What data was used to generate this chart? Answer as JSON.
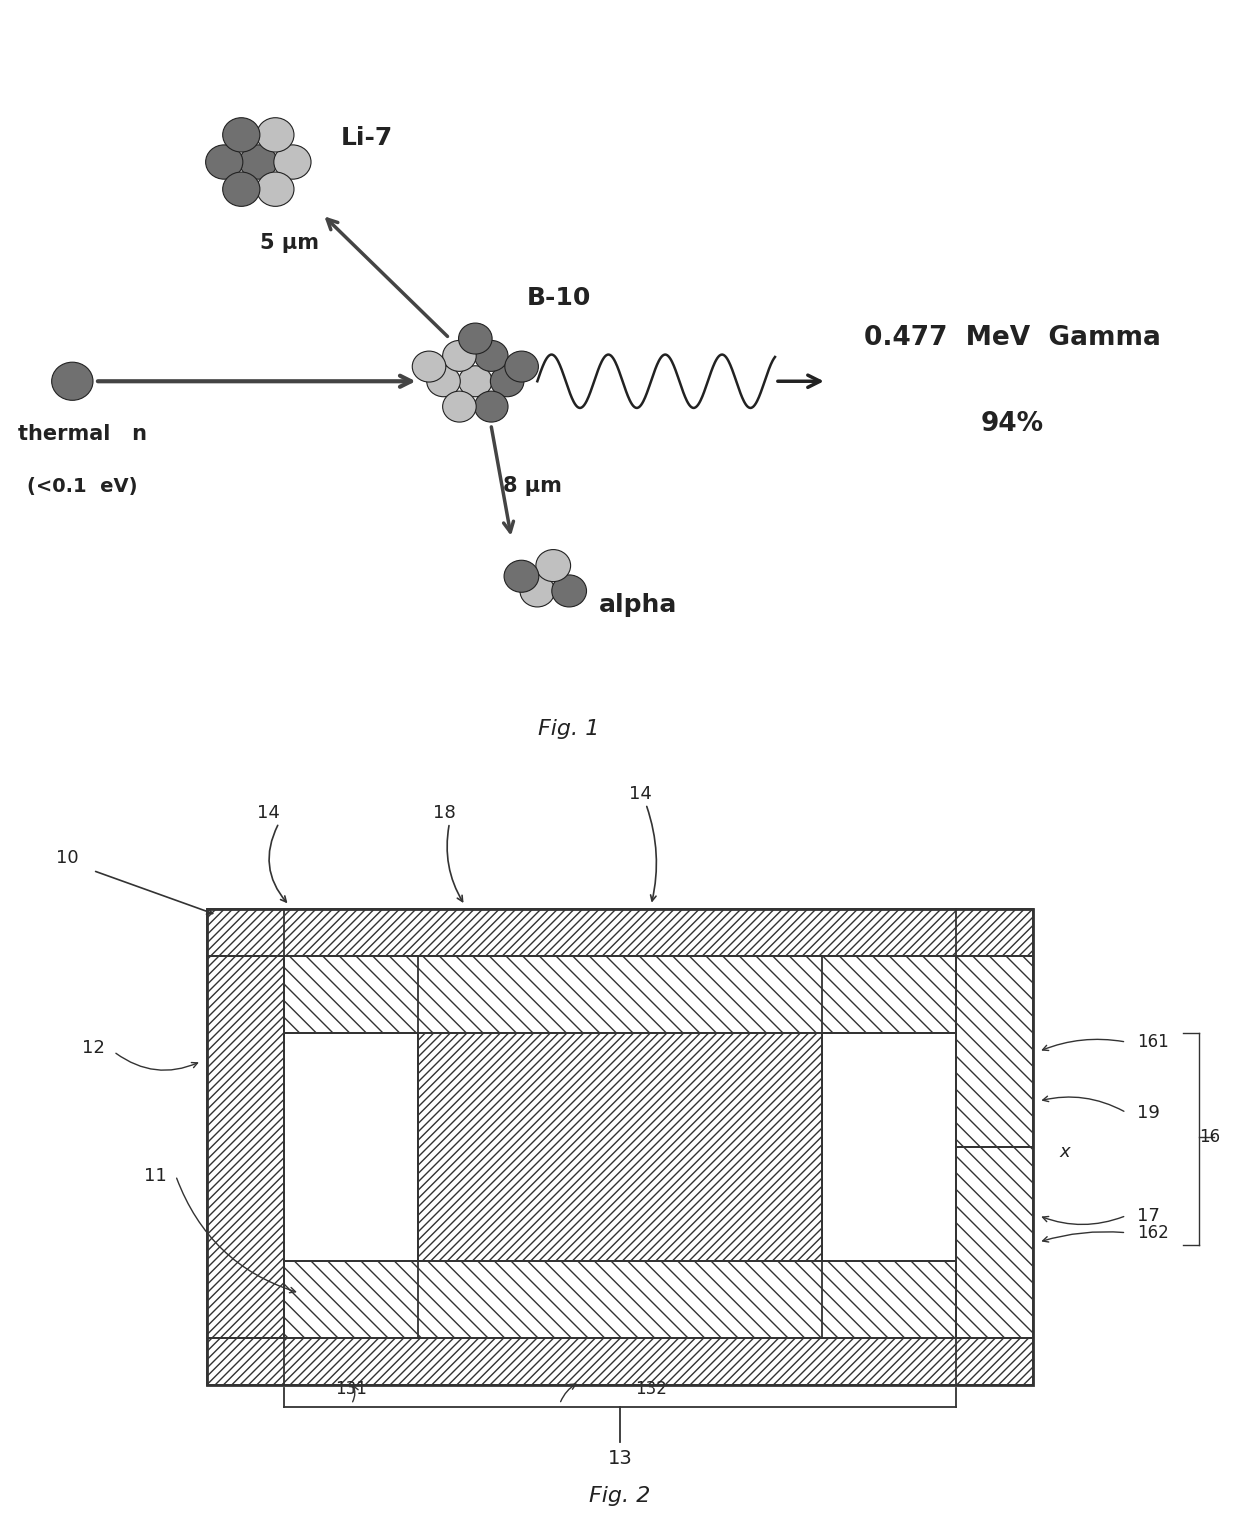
{
  "fig1_title": "Fig. 1",
  "fig2_title": "Fig. 2",
  "background_color": "#ffffff",
  "text_color": "#222222",
  "nucleus_dark": "#707070",
  "nucleus_light": "#c0c0c0",
  "labels_fig1": {
    "Li7": "Li-7",
    "B10": "B-10",
    "thermal": "thermal   n",
    "eV": "(<0.1  eV)",
    "um5": "5 μm",
    "um8": "8 μm",
    "gamma": "0.477  MeV  Gamma",
    "pct": "94%",
    "alpha": "alpha"
  },
  "labels_fig2": {
    "n10": "10",
    "n11": "11",
    "n12": "12",
    "n13": "13",
    "n131": "131",
    "n132": "132",
    "n14a": "14",
    "n14b": "14",
    "n16": "16",
    "n161": "161",
    "n162": "162",
    "n17": "17",
    "n18": "18",
    "n19": "19",
    "nx": "x"
  }
}
